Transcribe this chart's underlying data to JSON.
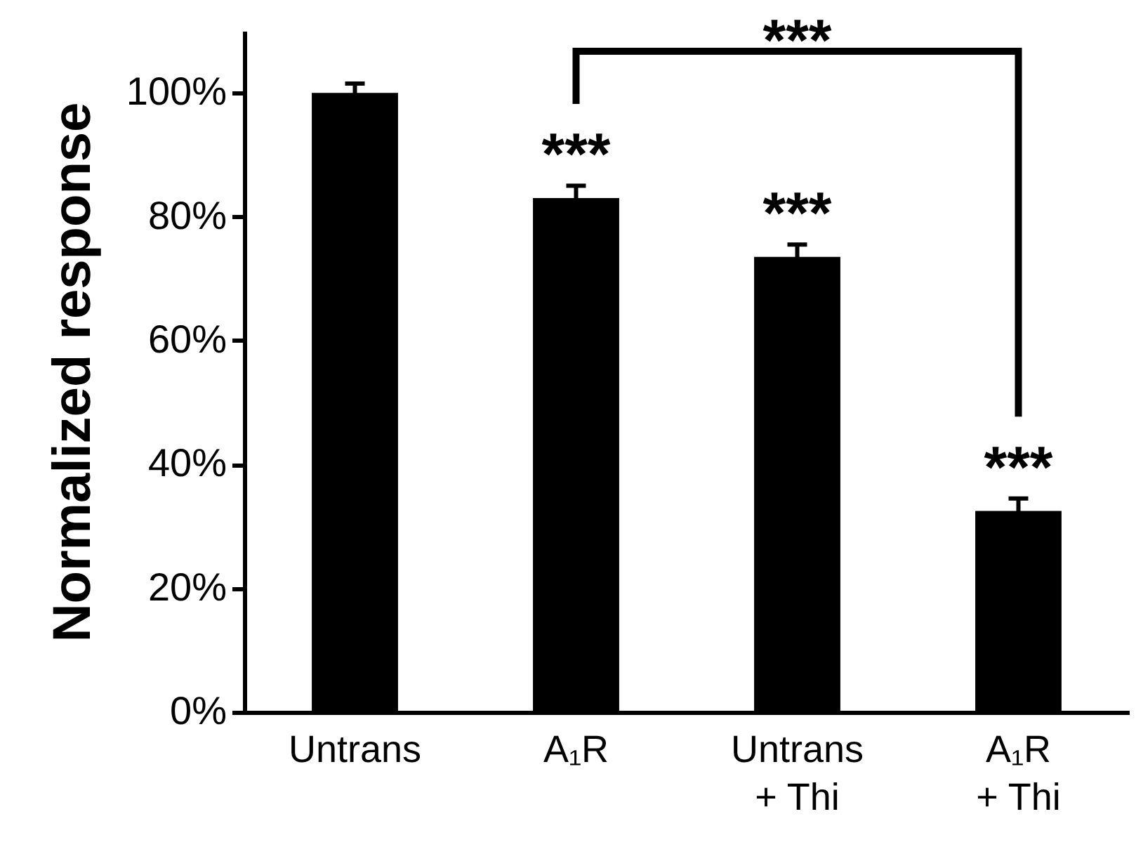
{
  "chart_data": {
    "type": "bar",
    "ylabel": "Normalized response",
    "categories": [
      "Untrans",
      "A₁R",
      "Untrans\n+ Thi",
      "A₁R\n+ Thi"
    ],
    "values": [
      100,
      83,
      73.5,
      32.5
    ],
    "errors": [
      1.5,
      2,
      2,
      2
    ],
    "color": "#000000",
    "ylim": [
      0,
      110
    ],
    "yticks": [
      {
        "value": 0,
        "label": "0%"
      },
      {
        "value": 20,
        "label": "20%"
      },
      {
        "value": 40,
        "label": "40%"
      },
      {
        "value": 60,
        "label": "60%"
      },
      {
        "value": 80,
        "label": "80%"
      },
      {
        "value": 100,
        "label": "100%"
      }
    ],
    "annotations": [
      "***",
      "***",
      "***",
      "***"
    ]
  }
}
